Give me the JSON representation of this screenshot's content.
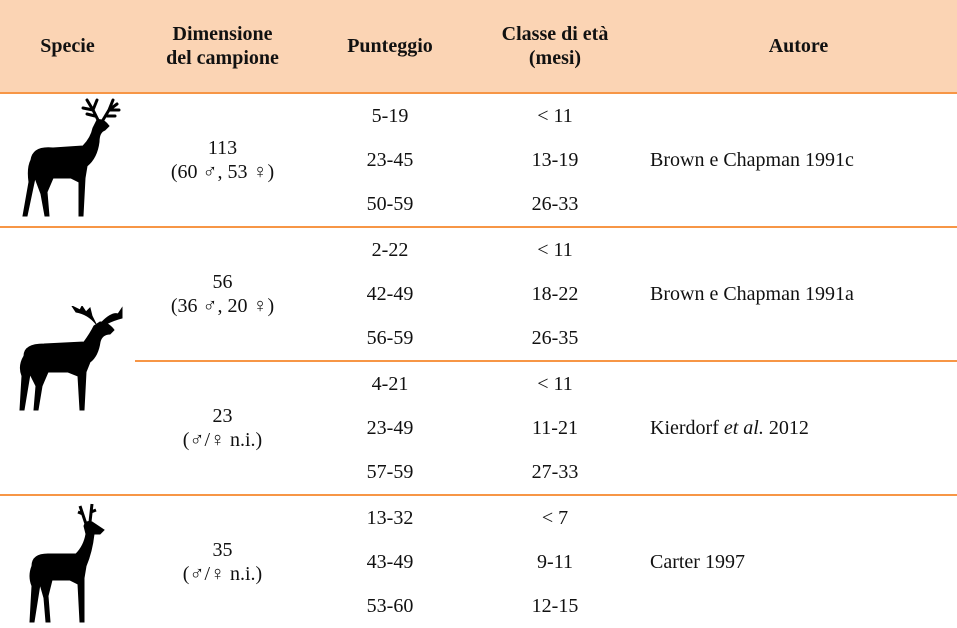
{
  "table": {
    "headers": [
      [
        "Specie"
      ],
      [
        "Dimensione",
        "del campione"
      ],
      [
        "Punteggio"
      ],
      [
        "Classe di età",
        "(mesi)"
      ],
      [
        "Autore"
      ]
    ],
    "groups": [
      {
        "sample": [
          "113",
          "(60 ♂, 53 ♀)"
        ],
        "scores": [
          "5-19",
          "23-45",
          "50-59"
        ],
        "ages": [
          "< 11",
          "13-19",
          "26-33"
        ],
        "author": [
          "Brown e Chapman 1991c"
        ]
      },
      {
        "sample": [
          "56",
          "(36 ♂, 20 ♀)"
        ],
        "scores": [
          "2-22",
          "42-49",
          "56-59"
        ],
        "ages": [
          "< 11",
          "18-22",
          "26-35"
        ],
        "author": [
          "Brown e Chapman 1991a"
        ]
      },
      {
        "sample": [
          "23",
          "(♂/♀ n.i.)"
        ],
        "scores": [
          "4-21",
          "23-49",
          "57-59"
        ],
        "ages": [
          "< 11",
          "11-21",
          "27-33"
        ],
        "author": [
          "Kierdorf ",
          "et al.",
          " 2012"
        ]
      },
      {
        "sample": [
          "35",
          "(♂/♀ n.i.)"
        ],
        "scores": [
          "13-32",
          "43-49",
          "53-60"
        ],
        "ages": [
          "< 7",
          "9-11",
          "12-15"
        ],
        "author": [
          "Carter 1997"
        ]
      }
    ]
  }
}
